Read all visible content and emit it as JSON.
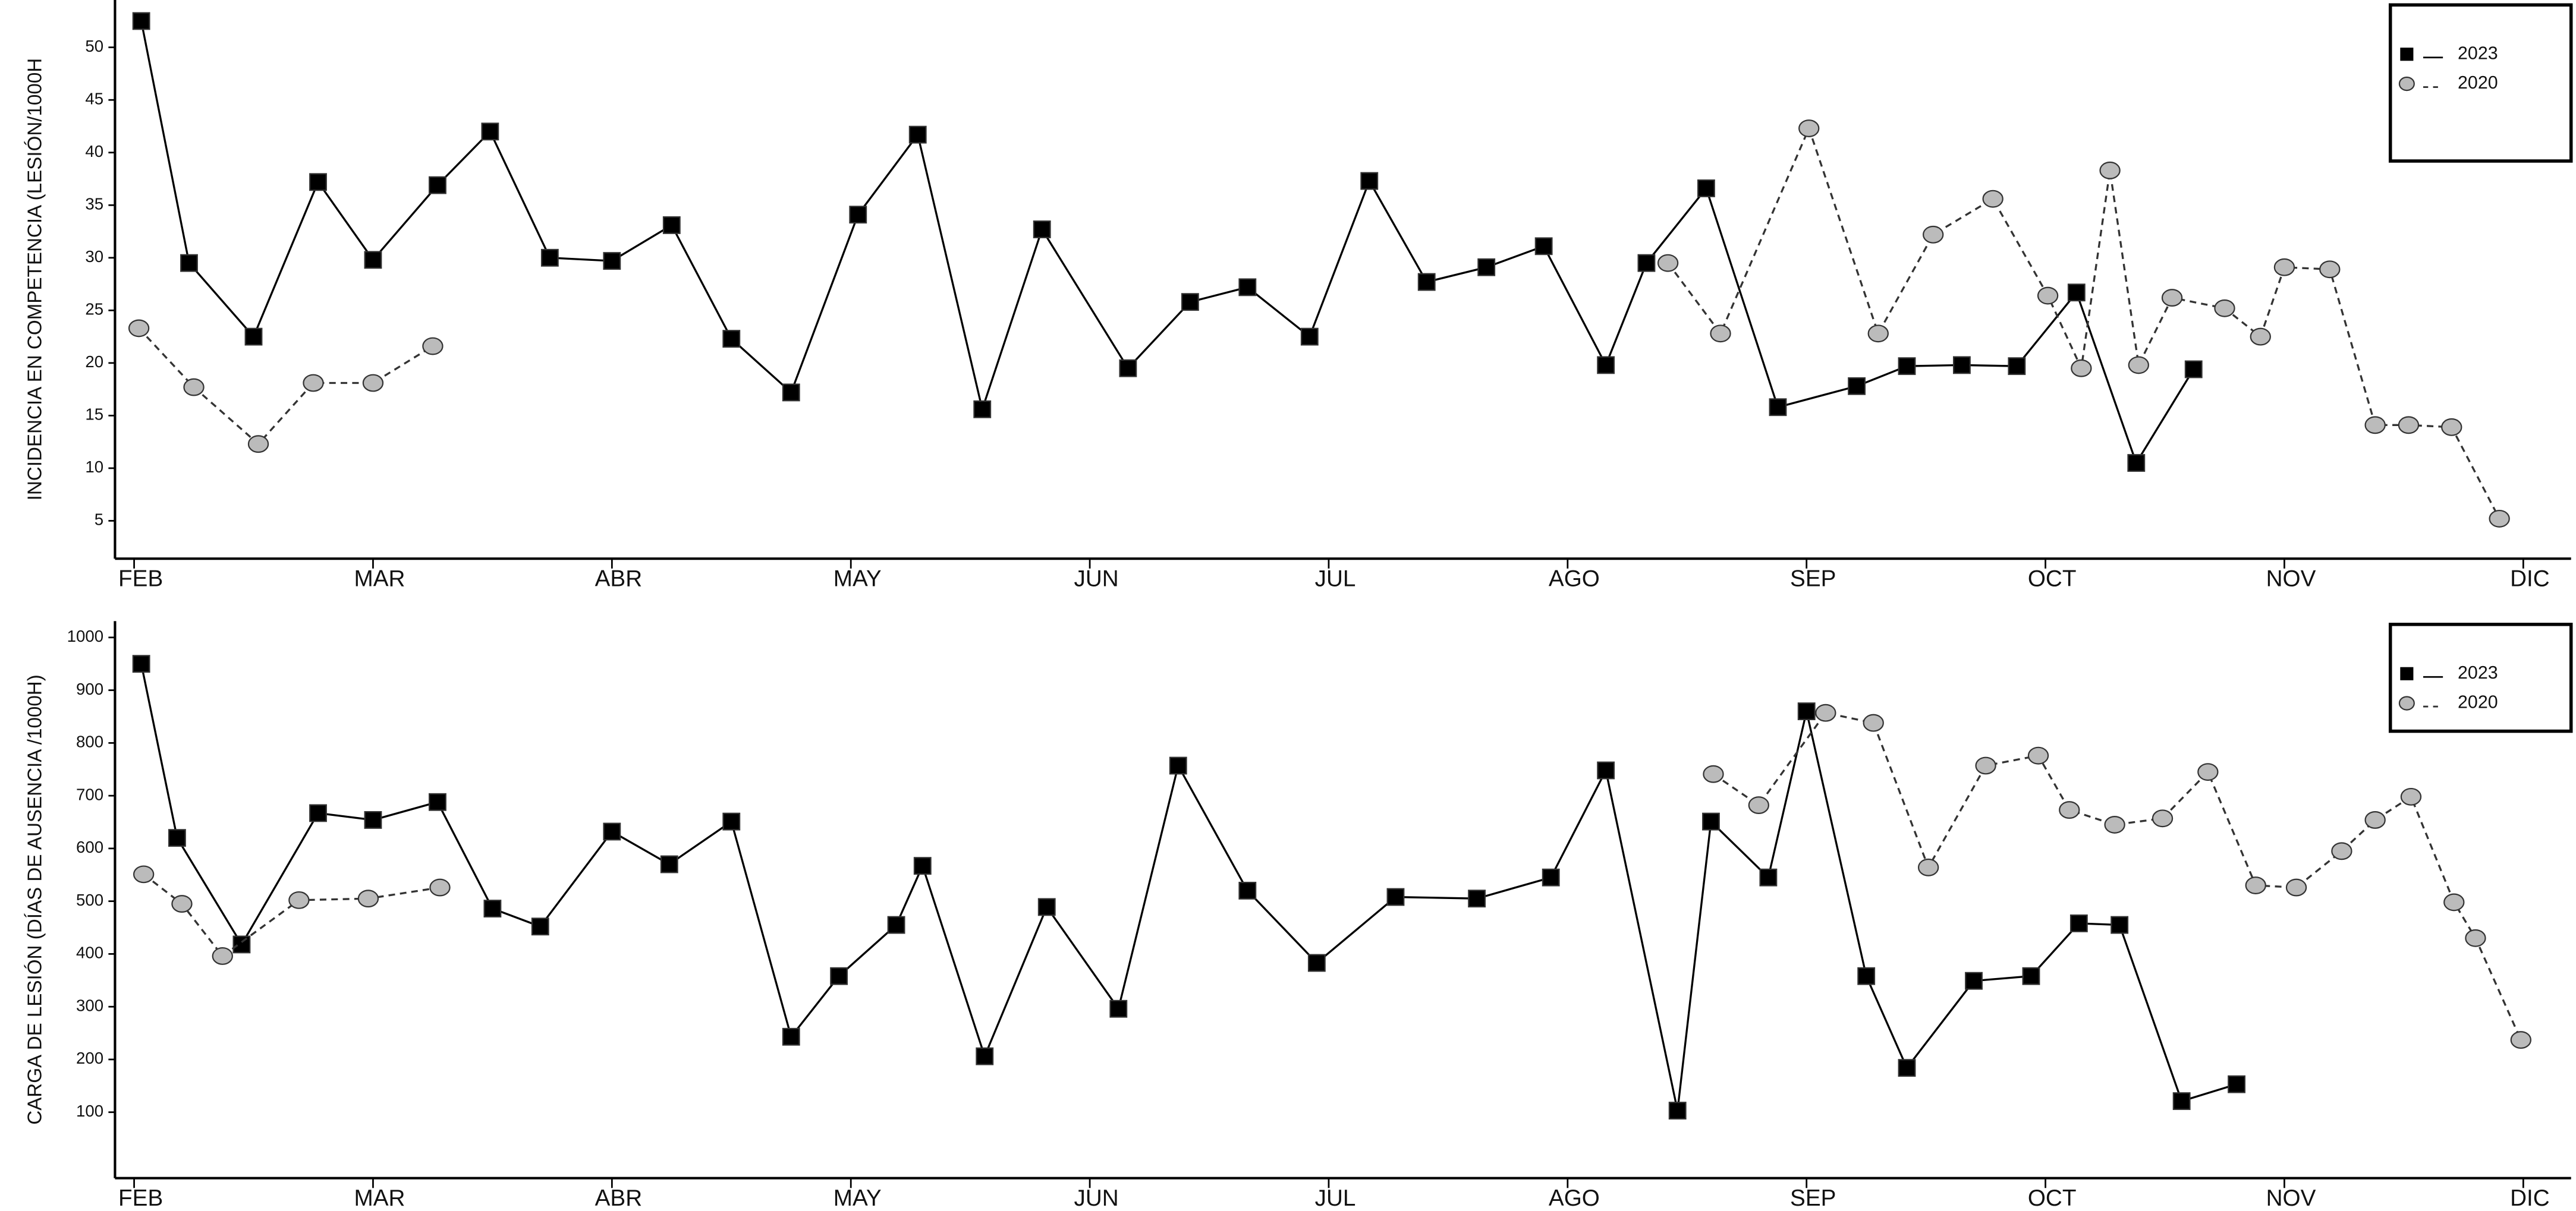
{
  "chart_data": [
    {
      "type": "line",
      "ylabel": "INCIDENCIA EN COMPETENCIA (LESIÓN/1000H",
      "xlim": [
        -0.08,
        10.2
      ],
      "xticks": [
        {
          "value": 0,
          "label": "FEB"
        },
        {
          "value": 1,
          "label": "MAR"
        },
        {
          "value": 2,
          "label": "ABR"
        },
        {
          "value": 3,
          "label": "MAY"
        },
        {
          "value": 4,
          "label": "JUN"
        },
        {
          "value": 5,
          "label": "JUL"
        },
        {
          "value": 6,
          "label": "AGO"
        },
        {
          "value": 7,
          "label": "SEP"
        },
        {
          "value": 8,
          "label": "OCT"
        },
        {
          "value": 9,
          "label": "NOV"
        },
        {
          "value": 10,
          "label": "DIC"
        }
      ],
      "ylim": [
        1.4,
        54.5
      ],
      "yticks": [
        5,
        10,
        15,
        20,
        25,
        30,
        35,
        40,
        45,
        50
      ],
      "legend": "upper right",
      "series": [
        {
          "name": "2023",
          "color": "#000000",
          "marker": "square",
          "marker_color": "#000000",
          "dash": false,
          "x": [
            0.03,
            0.23,
            0.5,
            0.77,
            1.0,
            1.27,
            1.49,
            1.74,
            2.0,
            2.25,
            2.5,
            2.75,
            3.03,
            3.28,
            3.55,
            3.8,
            4.16,
            4.42,
            4.66,
            4.92,
            5.17,
            5.41,
            5.66,
            5.9,
            6.16,
            6.33,
            6.58,
            6.88,
            7.21,
            7.42,
            7.65,
            7.88,
            8.13,
            8.38,
            8.62
          ],
          "values": [
            52.5,
            29.5,
            22.5,
            37.2,
            29.8,
            36.9,
            42,
            30,
            29.7,
            33.1,
            22.3,
            17.2,
            34.1,
            41.7,
            15.6,
            32.7,
            19.5,
            25.8,
            27.2,
            22.5,
            37.3,
            27.7,
            29.1,
            31.1,
            19.8,
            29.5,
            36.6,
            15.8,
            17.8,
            19.7,
            19.8,
            19.7,
            26.7,
            10.5,
            19.4
          ]
        },
        {
          "name": "2020",
          "color": "#333333",
          "marker": "circle",
          "marker_color": "#bbbbbb",
          "dash": true,
          "x": [
            0.02,
            0.25,
            0.52,
            0.75,
            1.0,
            1.25,
            null,
            6.42,
            6.64,
            7.01,
            7.3,
            7.53,
            7.78,
            8.01,
            8.15,
            8.27,
            8.39,
            8.53,
            8.75,
            8.9,
            9.0,
            9.19,
            9.38,
            9.52,
            9.7,
            9.9
          ],
          "values": [
            23.3,
            17.7,
            12.3,
            18.1,
            18.1,
            21.6,
            null,
            29.5,
            22.8,
            42.3,
            22.8,
            32.2,
            35.6,
            26.4,
            19.5,
            38.3,
            19.8,
            26.2,
            25.2,
            22.5,
            29.1,
            28.9,
            14.1,
            14.1,
            13.9,
            5.2
          ]
        }
      ]
    },
    {
      "type": "line",
      "ylabel": "CARGA DE LESIÓN (DÍAS DE AUSENCIA /1000H)",
      "xlim": [
        -0.08,
        10.2
      ],
      "xticks": [
        {
          "value": 0,
          "label": "FEB"
        },
        {
          "value": 1,
          "label": "MAR"
        },
        {
          "value": 2,
          "label": "ABR"
        },
        {
          "value": 3,
          "label": "MAY"
        },
        {
          "value": 4,
          "label": "JUN"
        },
        {
          "value": 5,
          "label": "JUL"
        },
        {
          "value": 6,
          "label": "AGO"
        },
        {
          "value": 7,
          "label": "SEP"
        },
        {
          "value": 8,
          "label": "OCT"
        },
        {
          "value": 9,
          "label": "NOV"
        },
        {
          "value": 10,
          "label": "DIC"
        }
      ],
      "ylim": [
        -25,
        1031
      ],
      "yticks": [
        100,
        200,
        300,
        400,
        500,
        600,
        700,
        800,
        900,
        1000
      ],
      "legend": "upper right",
      "series": [
        {
          "name": "2023",
          "color": "#000000",
          "marker": "square",
          "marker_color": "#000000",
          "dash": false,
          "x": [
            0.03,
            0.18,
            0.45,
            0.77,
            1.0,
            1.27,
            1.5,
            1.7,
            2.0,
            2.24,
            2.5,
            2.75,
            2.95,
            3.19,
            3.3,
            3.56,
            3.82,
            4.12,
            4.37,
            4.66,
            4.95,
            5.28,
            5.62,
            5.93,
            6.16,
            6.46,
            6.6,
            6.84,
            7.0,
            7.25,
            7.42,
            7.7,
            7.94,
            8.14,
            8.31,
            8.57,
            8.8
          ],
          "values": [
            950,
            620,
            418,
            667,
            654,
            688,
            486,
            452,
            632,
            570,
            651,
            243,
            358,
            455,
            567,
            206,
            489,
            296,
            757,
            520,
            383,
            508,
            505,
            545,
            748,
            103,
            651,
            545,
            860,
            358,
            184,
            349,
            358,
            458,
            455,
            121,
            153
          ]
        },
        {
          "name": "2020",
          "color": "#333333",
          "marker": "circle",
          "marker_color": "#bbbbbb",
          "dash": true,
          "x": [
            0.04,
            0.2,
            0.37,
            0.69,
            0.98,
            1.28,
            null,
            6.61,
            6.8,
            7.08,
            7.28,
            7.51,
            7.75,
            7.97,
            8.1,
            8.29,
            8.49,
            8.68,
            8.88,
            9.05,
            9.24,
            9.38,
            9.53,
            9.71,
            9.8,
            9.99
          ],
          "values": [
            551,
            495,
            396,
            502,
            505,
            526,
            null,
            741,
            682,
            857,
            838,
            564,
            757,
            776,
            673,
            645,
            657,
            745,
            530,
            526,
            595,
            654,
            698,
            498,
            430,
            237
          ]
        }
      ]
    }
  ]
}
